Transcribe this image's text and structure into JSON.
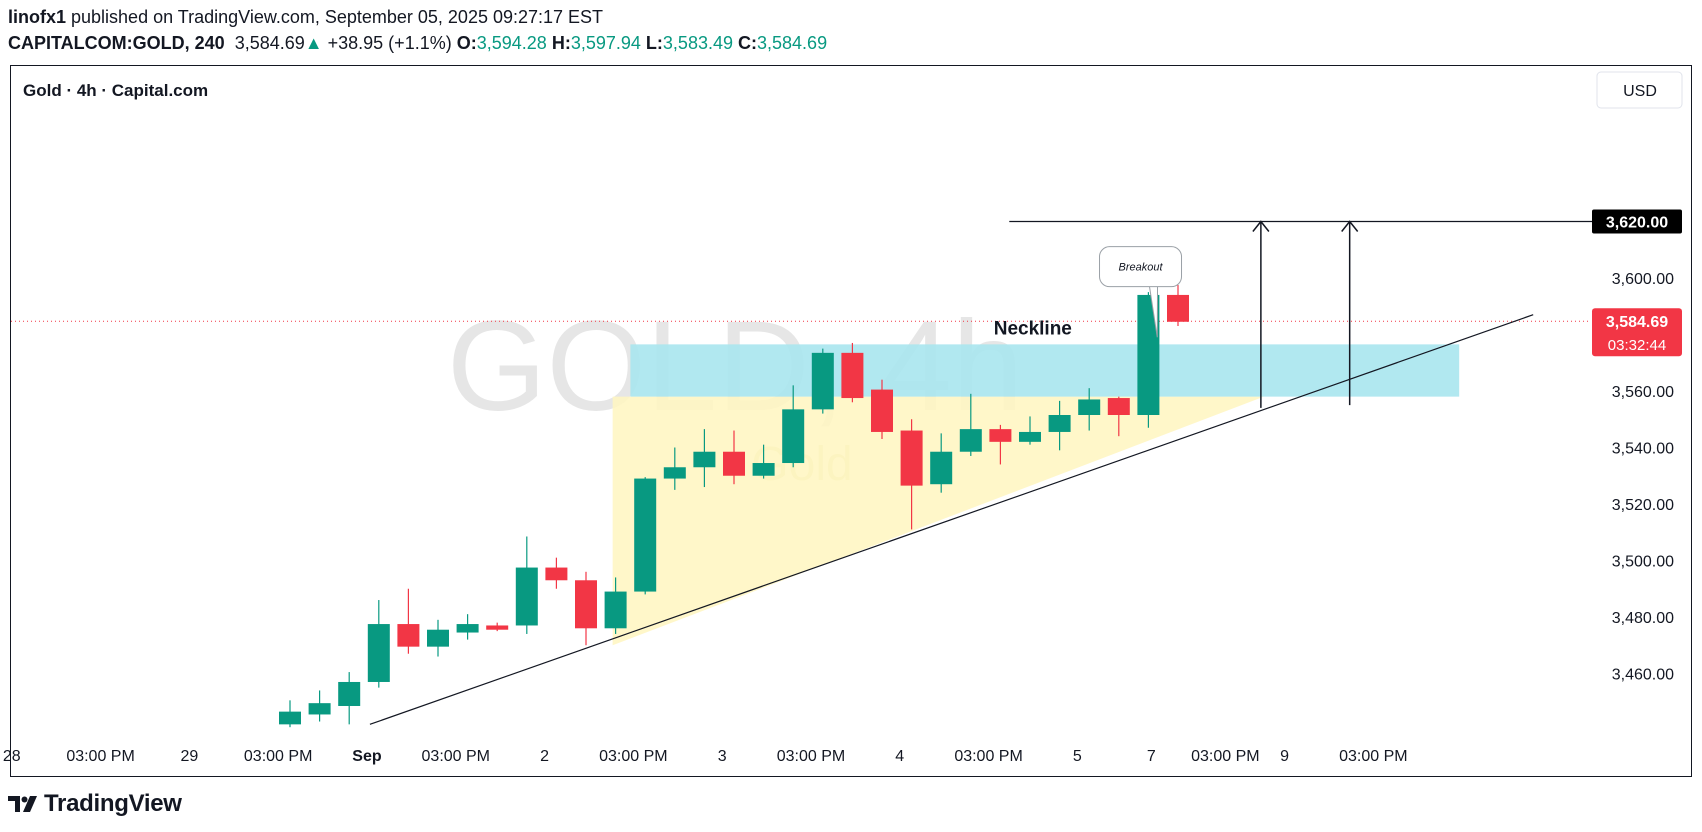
{
  "header": {
    "publisher": "linofx1",
    "published_text": " published on TradingView.com, September 05, 2025 09:27:17 EST",
    "symbol": "CAPITALCOM:GOLD, 240",
    "last_price": "3,584.69",
    "change": "+38.95 (+1.1%)",
    "o_label": "O:",
    "o_value": "3,594.28",
    "h_label": "H:",
    "h_value": "3,597.94",
    "l_label": "L:",
    "l_value": "3,583.49",
    "c_label": "C:",
    "c_value": "3,584.69"
  },
  "legend_title": "Gold · 4h · Capital.com",
  "currency": "USD",
  "watermark": {
    "main": "GOLD, 4h",
    "sub": "Gold"
  },
  "footer": {
    "brand": "TradingView",
    "logo_icon": "tradingview-logo-icon"
  },
  "colors": {
    "up": "#089981",
    "down": "#f23645",
    "zone": "#a8e6ee",
    "triangle": "#fff6bf",
    "last_price_bg": "#f23645",
    "target_bg": "#000000"
  },
  "chart_data": {
    "type": "candlestick",
    "ylim": [
      3440,
      3663
    ],
    "price_ticks": [
      "3,460.00",
      "3,480.00",
      "3,500.00",
      "3,520.00",
      "3,540.00",
      "3,560.00",
      "3,600.00"
    ],
    "price_tick_values": [
      3460,
      3480,
      3500,
      3520,
      3540,
      3560,
      3600
    ],
    "time_ticks": [
      "28",
      "03:00 PM",
      "29",
      "03:00 PM",
      "Sep",
      "03:00 PM",
      "2",
      "03:00 PM",
      "3",
      "03:00 PM",
      "4",
      "03:00 PM",
      "5",
      "7",
      "03:00 PM",
      "9",
      "03:00 PM"
    ],
    "time_tick_bars": [
      -9.4,
      -6.4,
      -3.4,
      -0.4,
      2.6,
      5.6,
      8.6,
      11.6,
      14.6,
      17.6,
      20.6,
      23.6,
      26.6,
      29.1,
      31.6,
      33.6,
      36.6
    ],
    "candles": [
      {
        "o": 3442.0,
        "h": 3450.5,
        "l": 3441.0,
        "c": 3446.5
      },
      {
        "o": 3445.5,
        "h": 3454.0,
        "l": 3443.0,
        "c": 3449.5
      },
      {
        "o": 3448.5,
        "h": 3460.5,
        "l": 3442.0,
        "c": 3457.0
      },
      {
        "o": 3457.0,
        "h": 3486.0,
        "l": 3455.0,
        "c": 3477.5
      },
      {
        "o": 3477.5,
        "h": 3490.0,
        "l": 3467.0,
        "c": 3469.5
      },
      {
        "o": 3469.5,
        "h": 3479.0,
        "l": 3466.0,
        "c": 3475.5
      },
      {
        "o": 3474.5,
        "h": 3481.0,
        "l": 3472.0,
        "c": 3477.5
      },
      {
        "o": 3477.0,
        "h": 3478.0,
        "l": 3475.0,
        "c": 3475.5
      },
      {
        "o": 3477.0,
        "h": 3508.5,
        "l": 3474.0,
        "c": 3497.5
      },
      {
        "o": 3497.5,
        "h": 3501.0,
        "l": 3490.0,
        "c": 3493.0
      },
      {
        "o": 3493.0,
        "h": 3496.0,
        "l": 3470.0,
        "c": 3476.0
      },
      {
        "o": 3476.0,
        "h": 3494.0,
        "l": 3474.0,
        "c": 3489.0
      },
      {
        "o": 3489.0,
        "h": 3529.5,
        "l": 3488.0,
        "c": 3529.0
      },
      {
        "o": 3529.0,
        "h": 3540.0,
        "l": 3525.0,
        "c": 3533.0
      },
      {
        "o": 3533.0,
        "h": 3546.5,
        "l": 3526.0,
        "c": 3538.5
      },
      {
        "o": 3538.5,
        "h": 3546.0,
        "l": 3527.0,
        "c": 3530.0
      },
      {
        "o": 3530.0,
        "h": 3541.0,
        "l": 3529.0,
        "c": 3534.5
      },
      {
        "o": 3534.5,
        "h": 3562.0,
        "l": 3533.0,
        "c": 3553.5
      },
      {
        "o": 3553.5,
        "h": 3575.0,
        "l": 3552.0,
        "c": 3573.5
      },
      {
        "o": 3573.5,
        "h": 3577.0,
        "l": 3556.0,
        "c": 3557.5
      },
      {
        "o": 3560.5,
        "h": 3564.0,
        "l": 3543.0,
        "c": 3545.5
      },
      {
        "o": 3546.0,
        "h": 3550.0,
        "l": 3511.0,
        "c": 3526.5
      },
      {
        "o": 3527.0,
        "h": 3545.0,
        "l": 3524.0,
        "c": 3538.5
      },
      {
        "o": 3538.5,
        "h": 3559.0,
        "l": 3537.0,
        "c": 3546.5
      },
      {
        "o": 3546.5,
        "h": 3548.0,
        "l": 3534.0,
        "c": 3542.0
      },
      {
        "o": 3542.0,
        "h": 3551.0,
        "l": 3541.0,
        "c": 3545.5
      },
      {
        "o": 3545.5,
        "h": 3556.5,
        "l": 3539.0,
        "c": 3551.5
      },
      {
        "o": 3551.5,
        "h": 3561.0,
        "l": 3546.0,
        "c": 3557.0
      },
      {
        "o": 3557.5,
        "h": 3558.0,
        "l": 3544.0,
        "c": 3551.5
      },
      {
        "o": 3551.5,
        "h": 3595.0,
        "l": 3547.0,
        "c": 3594.0
      },
      {
        "o": 3594.0,
        "h": 3597.5,
        "l": 3583.0,
        "c": 3584.5
      }
    ],
    "last_price": "3,584.69",
    "last_price_value": 3584.69,
    "countdown": "03:32:44",
    "target_label": "3,620.00",
    "target_value": 3620,
    "neckline_zone": {
      "from_bar": 11.5,
      "to_bar": 39.5,
      "y_low": 3558,
      "y_high": 3576.5,
      "label": "Neckline"
    },
    "triangle": {
      "from_bar": 10.9,
      "to_bar": 32.9,
      "top_y": 3558,
      "bottom_y": 3470.0
    },
    "trendline": {
      "x1_bar": 2.7,
      "y1": 3442.0,
      "x2_bar": 42.0,
      "y2": 3587.0
    },
    "target_line": {
      "x1_bar": 24.3,
      "x2_bar": 44.5,
      "y": 3620
    },
    "arrows": [
      {
        "x_bar": 32.8,
        "from_y": 3554,
        "to_y": 3620
      },
      {
        "x_bar": 35.8,
        "from_y": 3555,
        "to_y": 3620
      }
    ],
    "callout": {
      "text": "Breakout",
      "x_bar": 28.7,
      "y": 3604,
      "pointer_bar": 29.3,
      "pointer_y": 3579
    },
    "legend": "none",
    "grid": false
  }
}
